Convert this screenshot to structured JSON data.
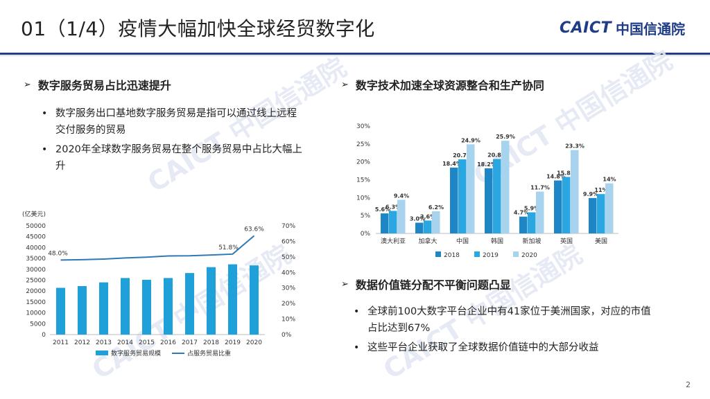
{
  "header": {
    "title": "01（1/4）疫情大幅加快全球经贸数字化",
    "logo_en": "CAICT",
    "logo_cn": "中国信通院"
  },
  "left": {
    "heading": "数字服务贸易占比迅速提升",
    "bullets": [
      "数字服务出口基地数字服务贸易是指可以通过线上远程交付服务的贸易",
      "2020年全球数字服务贸易在整个服务贸易中占比大幅上升"
    ]
  },
  "right_top": {
    "heading": "数字技术加速全球资源整合和生产协同"
  },
  "right_bottom": {
    "heading": "数据价值链分配不平衡问题凸显",
    "bullets": [
      "全球前100大数字平台企业中有41家位于美洲国家，对应的市值占比达到67%",
      "这些平台企业获取了全球数据价值链中的大部分收益"
    ]
  },
  "watermark": "CAICT 中国信通院",
  "page_number": "2",
  "colors": {
    "navy": "#1f3c88",
    "bar": "#1fa0d8",
    "line": "#2e78b5",
    "s2018": "#1f86c6",
    "s2019": "#2aa7e0",
    "s2020": "#a8d3ee"
  },
  "chart_data": [
    {
      "type": "bar",
      "ylabel": "(亿美元)",
      "categories": [
        "2011",
        "2012",
        "2013",
        "2014",
        "2015",
        "2016",
        "2017",
        "2018",
        "2019",
        "2020"
      ],
      "series": [
        {
          "name": "数字服务贸易规模",
          "type": "bar",
          "axis": "left",
          "values": [
            21500,
            22300,
            24000,
            26000,
            25200,
            26000,
            28300,
            31000,
            32300,
            31800
          ]
        },
        {
          "name": "占服务贸易比重",
          "type": "line",
          "axis": "right",
          "values": [
            48.0,
            48.2,
            48.6,
            49.3,
            49.8,
            50.6,
            50.7,
            51.2,
            51.8,
            63.6
          ],
          "labels": [
            "48.0%",
            "",
            "",
            "",
            "",
            "",
            "",
            "",
            "51.8%",
            "63.6%"
          ]
        }
      ],
      "yticks_left": [
        "0",
        "5000",
        "10000",
        "15000",
        "20000",
        "25000",
        "30000",
        "35000",
        "40000",
        "45000",
        "50000"
      ],
      "yticks_right": [
        "0%",
        "10%",
        "20%",
        "30%",
        "40%",
        "50%",
        "60%",
        "70%"
      ],
      "ylim_left": [
        0,
        50000
      ],
      "ylim_right": [
        0,
        70
      ],
      "legend": "bottom"
    },
    {
      "type": "bar",
      "categories": [
        "澳大利亚",
        "加拿大",
        "中国",
        "韩国",
        "新加坡",
        "英国",
        "美国"
      ],
      "series": [
        {
          "name": "2018",
          "values": [
            5.6,
            3.0,
            18.4,
            18.2,
            4.7,
            14.8,
            9.9
          ],
          "labels": [
            "5.6%",
            "3.0%",
            "18.4%",
            "18.2%",
            "4.7%",
            "14.8%",
            "9.9%"
          ]
        },
        {
          "name": "2019",
          "values": [
            6.3,
            3.6,
            20.7,
            20.8,
            5.9,
            15.8,
            11
          ],
          "labels": [
            "6.3%",
            "3.6%",
            "20.7%",
            "20.8%",
            "5.9%",
            "15.8%",
            "11%"
          ]
        },
        {
          "name": "2020",
          "values": [
            9.4,
            6.2,
            24.9,
            25.9,
            11.7,
            23.3,
            14
          ],
          "labels": [
            "9.4%",
            "6.2%",
            "24.9%",
            "25.9%",
            "11.7%",
            "23.3%",
            "14%"
          ]
        }
      ],
      "yticks": [
        "0%",
        "5%",
        "10%",
        "15%",
        "20%",
        "25%",
        "30%"
      ],
      "ylim": [
        0,
        30
      ],
      "legend": "bottom"
    }
  ]
}
